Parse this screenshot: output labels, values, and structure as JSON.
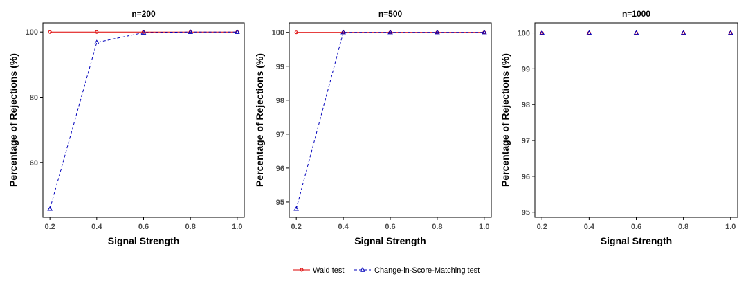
{
  "colors": {
    "wald": "#dd0000",
    "csm": "#0000bb",
    "frame": "#000000",
    "tick_text": "#4d4d4d"
  },
  "chart_data": [
    {
      "type": "line",
      "title": "n=200",
      "xlabel": "Signal Strength",
      "ylabel": "Percentage of Rejections (%)",
      "x": [
        0.2,
        0.4,
        0.6,
        0.8,
        1.0
      ],
      "xticks": [
        "0.2",
        "0.4",
        "0.6",
        "0.8",
        "1.0"
      ],
      "xlim": [
        0.17,
        1.03
      ],
      "yticks": [
        60,
        80,
        100
      ],
      "ylim": [
        43.2,
        102.8
      ],
      "series": [
        {
          "name": "Wald test",
          "values": [
            100,
            100,
            100,
            100,
            100
          ]
        },
        {
          "name": "Change-in-Score-Matching test",
          "values": [
            45.8,
            96.8,
            99.8,
            100,
            100
          ]
        }
      ],
      "grid": false
    },
    {
      "type": "line",
      "title": "n=500",
      "xlabel": "Signal Strength",
      "ylabel": "Percentage of Rejections (%)",
      "x": [
        0.2,
        0.4,
        0.6,
        0.8,
        1.0
      ],
      "xticks": [
        "0.2",
        "0.4",
        "0.6",
        "0.8",
        "1.0"
      ],
      "xlim": [
        0.17,
        1.03
      ],
      "yticks": [
        95,
        96,
        97,
        98,
        99,
        100
      ],
      "ylim": [
        94.55,
        100.28
      ],
      "series": [
        {
          "name": "Wald test",
          "values": [
            100,
            100,
            100,
            100,
            100
          ]
        },
        {
          "name": "Change-in-Score-Matching test",
          "values": [
            94.8,
            100,
            100,
            100,
            100
          ]
        }
      ],
      "grid": false
    },
    {
      "type": "line",
      "title": "n=1000",
      "xlabel": "Signal Strength",
      "ylabel": "Percentage of Rejections (%)",
      "x": [
        0.2,
        0.4,
        0.6,
        0.8,
        1.0
      ],
      "xticks": [
        "0.2",
        "0.4",
        "0.6",
        "0.8",
        "1.0"
      ],
      "xlim": [
        0.17,
        1.03
      ],
      "yticks": [
        95,
        96,
        97,
        98,
        99,
        100
      ],
      "ylim": [
        94.86,
        100.28
      ],
      "series": [
        {
          "name": "Wald test",
          "values": [
            100,
            100,
            100,
            100,
            100
          ]
        },
        {
          "name": "Change-in-Score-Matching test",
          "values": [
            100,
            100,
            100,
            100,
            100
          ]
        }
      ],
      "grid": false
    }
  ],
  "legend": {
    "position": "bottom",
    "items": [
      {
        "label": "Wald test"
      },
      {
        "label": "Change-in-Score-Matching test"
      }
    ]
  }
}
